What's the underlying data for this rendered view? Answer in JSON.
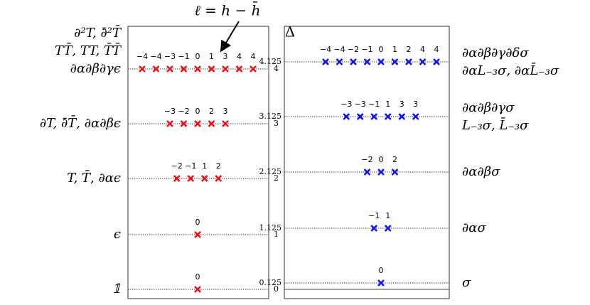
{
  "annotation": "ℓ = h − h̄",
  "delta_header": "Δ",
  "panels": [
    {
      "levels": [
        {
          "delta": "0",
          "spins": [
            "0"
          ],
          "labels": [
            "𝟙"
          ]
        },
        {
          "delta": "1",
          "spins": [
            "0"
          ],
          "labels": [
            "ϵ"
          ]
        },
        {
          "delta": "2",
          "spins": [
            "−2",
            "−1",
            "1",
            "2"
          ],
          "labels": [
            "T, T̄, ∂αϵ"
          ]
        },
        {
          "delta": "3",
          "spins": [
            "−3",
            "−2",
            "0",
            "2",
            "3"
          ],
          "labels": [
            "∂T, ∂̄T̄, ∂α∂βϵ"
          ]
        },
        {
          "delta": "4",
          "spins": [
            "−4",
            "−4",
            "−3",
            "−1",
            "0",
            "1",
            "3",
            "4",
            "4"
          ],
          "labels": [
            "∂²T, ∂̄²T̄",
            "TT̄, TT, T̄T̄",
            "∂α∂β∂γϵ"
          ]
        }
      ]
    },
    {
      "levels": [
        {
          "delta": "0.125",
          "spins": [
            "0"
          ],
          "labels": [
            "σ"
          ]
        },
        {
          "delta": "1.125",
          "spins": [
            "−1",
            "1"
          ],
          "labels": [
            "∂ασ"
          ]
        },
        {
          "delta": "2.125",
          "spins": [
            "−2",
            "0",
            "2"
          ],
          "labels": [
            "∂α∂βσ"
          ]
        },
        {
          "delta": "3.125",
          "spins": [
            "−3",
            "−3",
            "−1",
            "1",
            "3",
            "3"
          ],
          "labels": [
            "∂α∂β∂γσ",
            "L₋₃σ, L̄₋₃σ"
          ]
        },
        {
          "delta": "4.125",
          "spins": [
            "−4",
            "−4",
            "−2",
            "−1",
            "0",
            "1",
            "2",
            "4",
            "4"
          ],
          "labels": [
            "∂α∂β∂γ∂δσ",
            "∂αL₋₃σ, ∂αL̄₋₃σ"
          ]
        }
      ]
    }
  ]
}
